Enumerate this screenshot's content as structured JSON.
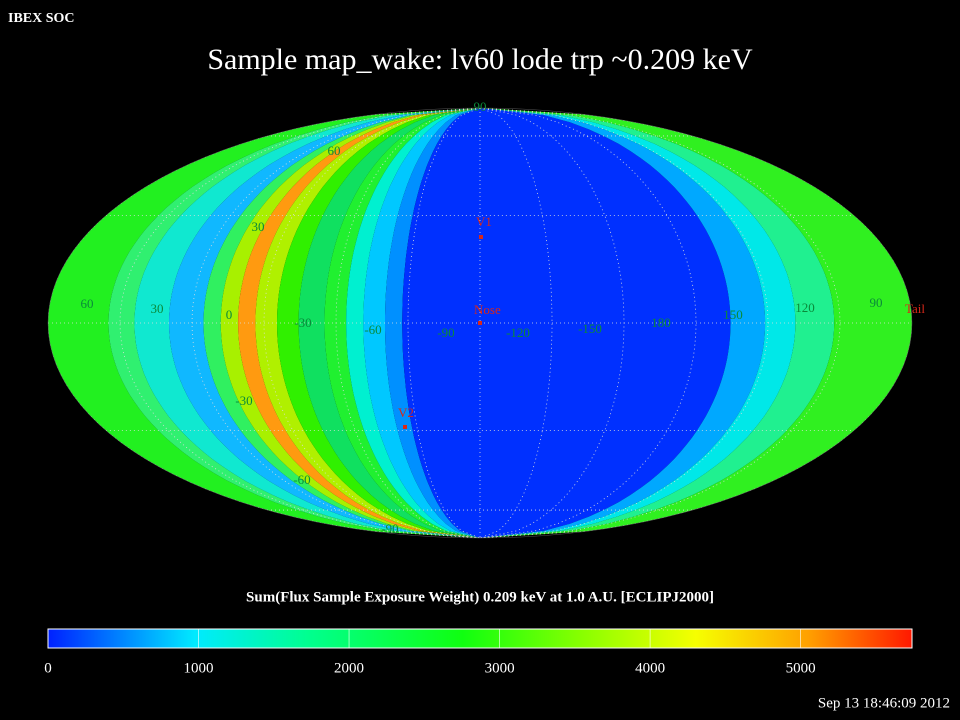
{
  "header": "IBEX SOC",
  "title": "Sample map_wake: lv60 lode trp ~0.209 keV",
  "map": {
    "longitude_labels": [
      "60",
      "30",
      "0",
      "-30",
      "-60",
      "-90",
      "-120",
      "-150",
      "180",
      "150",
      "120",
      "90"
    ],
    "latitude_labels": [
      "90",
      "60",
      "30",
      "-30",
      "-60",
      "-90"
    ],
    "markers": [
      "V1",
      "Nose",
      "V2",
      "Tail"
    ]
  },
  "colorbar": {
    "title": "Sum(Flux Sample Exposure Weight)  0.209 keV at 1.0 A.U. [ECLIPJ2000]",
    "range": [
      0,
      5740
    ],
    "ticks": [
      0,
      1000,
      2000,
      3000,
      4000,
      5000
    ]
  },
  "footer": "Sep 13 18:46:09 2012"
}
